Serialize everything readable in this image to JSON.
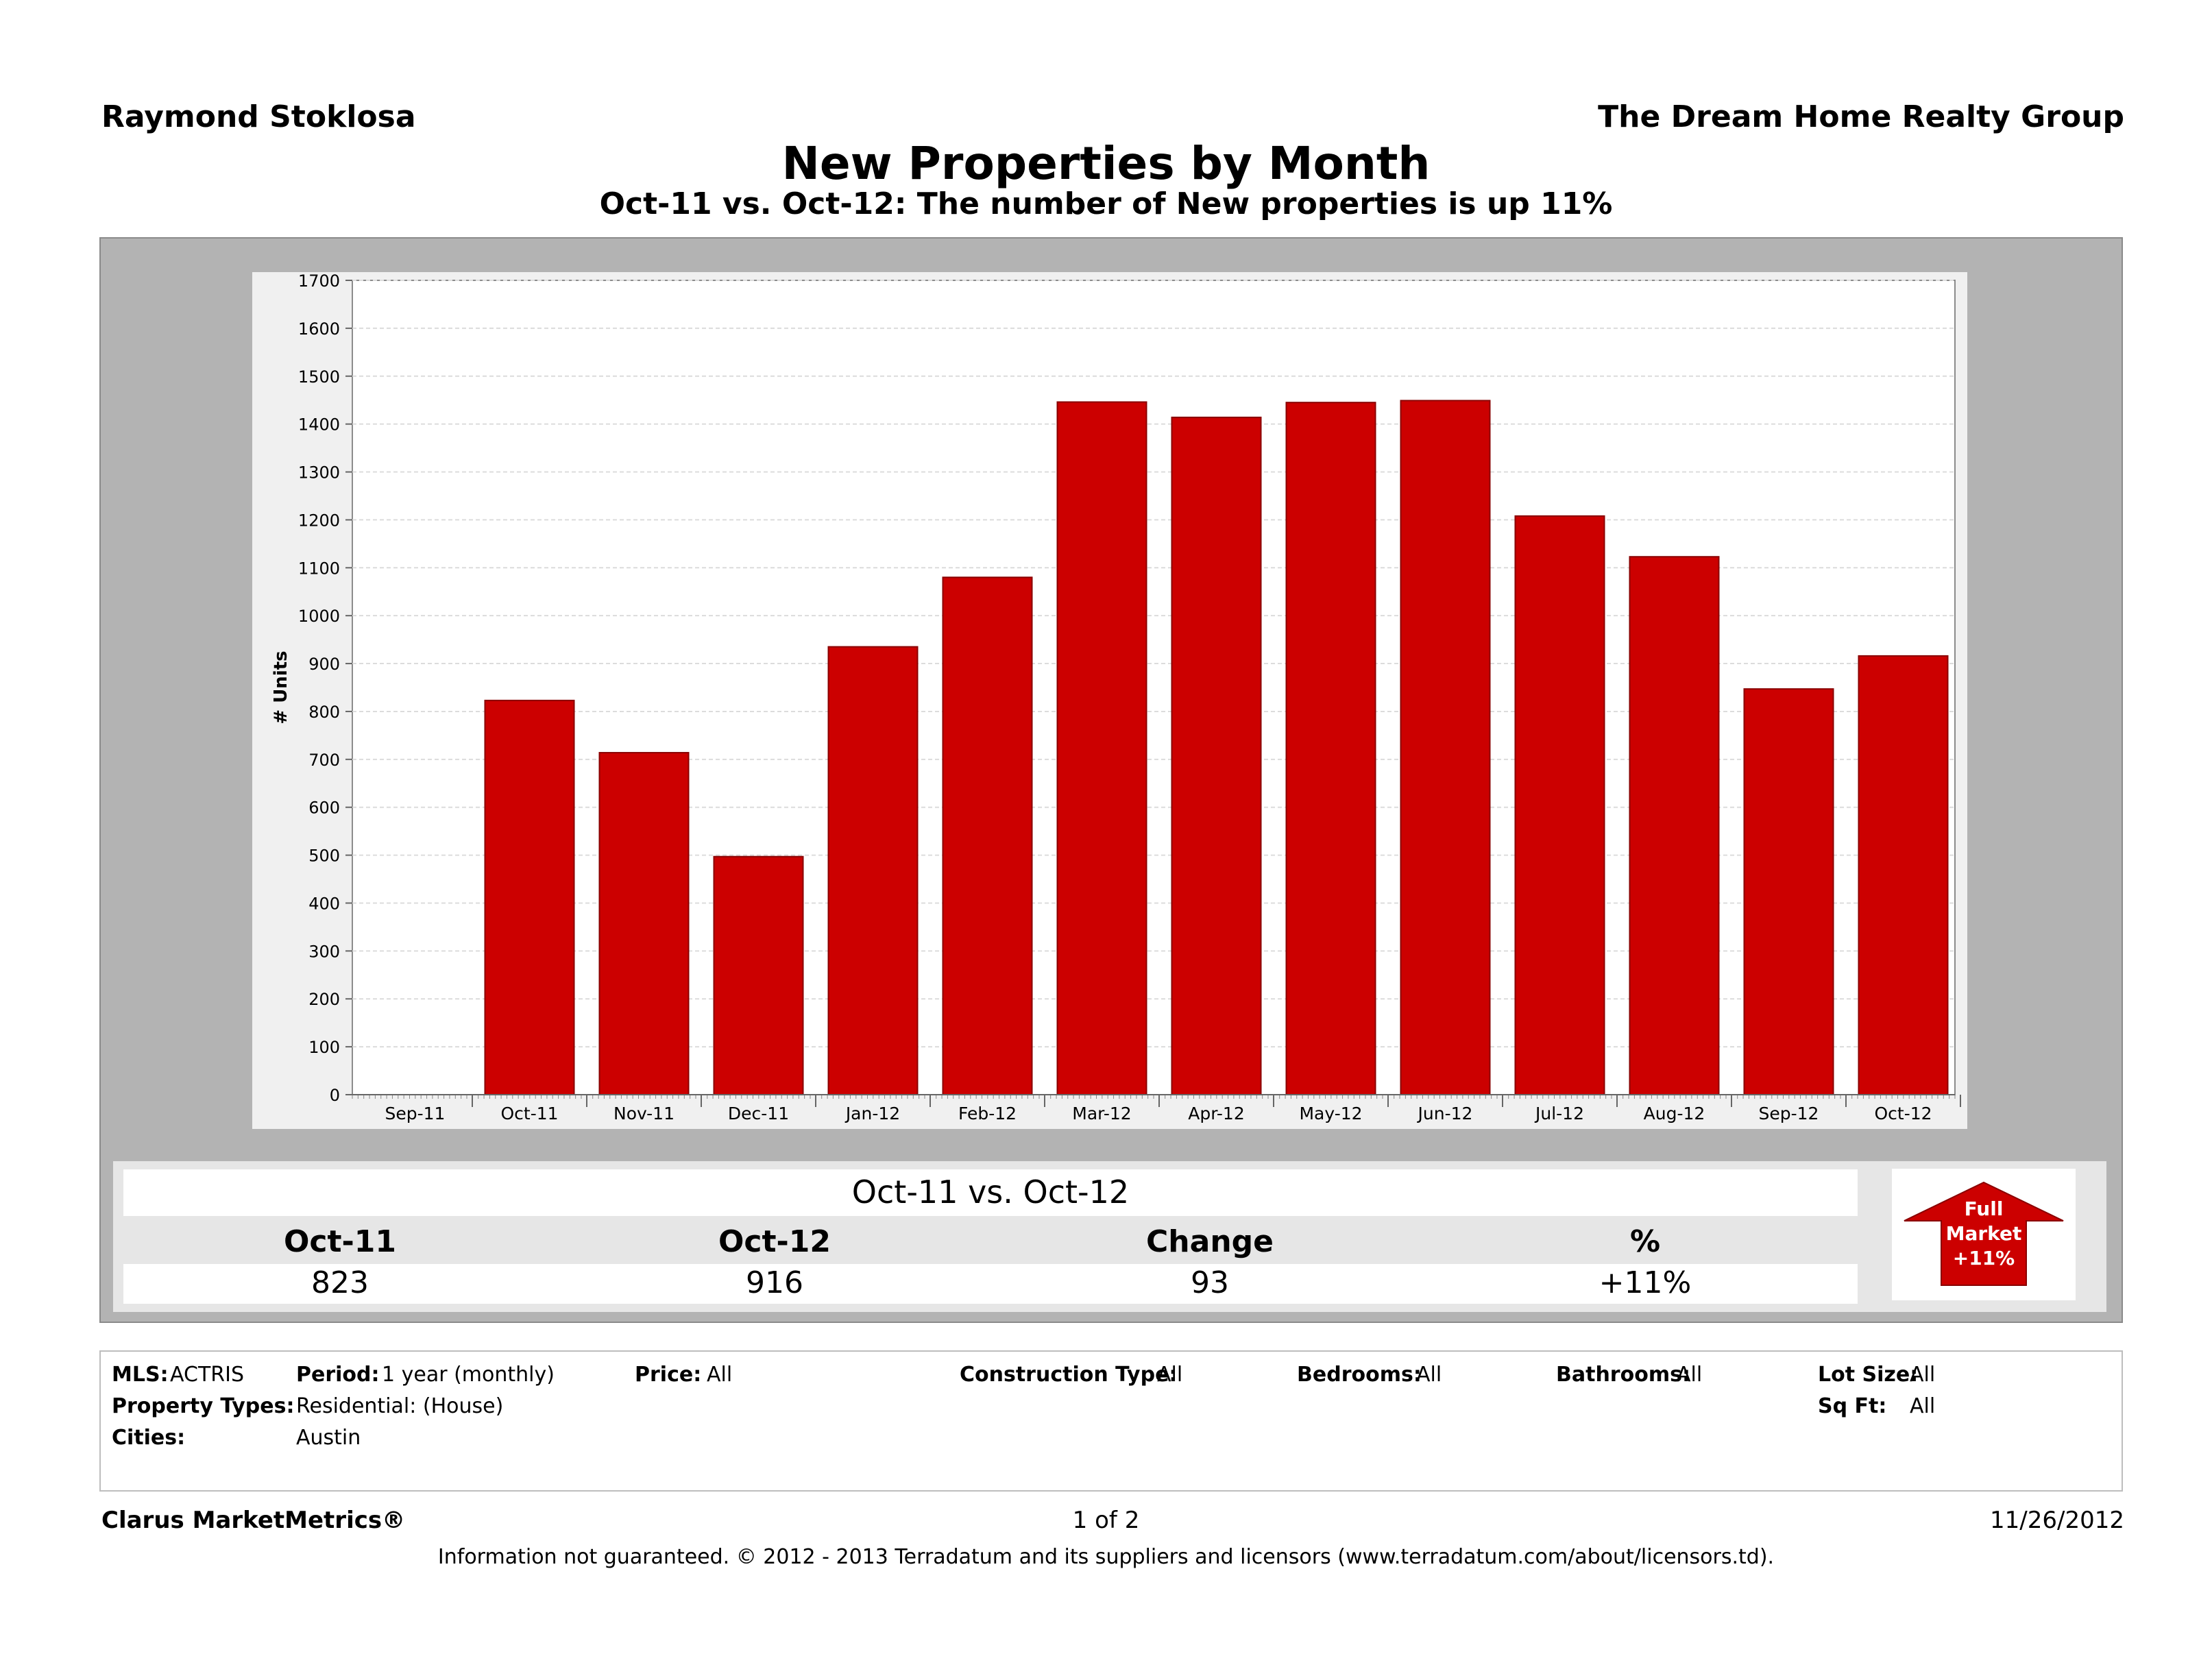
{
  "header": {
    "agent": "Raymond Stoklosa",
    "company": "The Dream Home Realty Group",
    "title": "New Properties by Month",
    "subtitle": "Oct-11 vs. Oct-12: The number of New properties is up 11%"
  },
  "chart_data": {
    "type": "bar",
    "ylabel": "# Units",
    "ylim": [
      0,
      1700
    ],
    "yticks": [
      0,
      100,
      200,
      300,
      400,
      500,
      600,
      700,
      800,
      900,
      1000,
      1100,
      1200,
      1300,
      1400,
      1500,
      1600,
      1700
    ],
    "grid": true,
    "categories": [
      "Sep-11",
      "Oct-11",
      "Nov-11",
      "Dec-11",
      "Jan-12",
      "Feb-12",
      "Mar-12",
      "Apr-12",
      "May-12",
      "Jun-12",
      "Jul-12",
      "Aug-12",
      "Sep-12",
      "Oct-12"
    ],
    "values": [
      null,
      823,
      714,
      497,
      935,
      1080,
      1446,
      1414,
      1445,
      1449,
      1208,
      1123,
      847,
      916
    ],
    "bar_color": "#cc0000"
  },
  "summary": {
    "title": "Oct-11 vs. Oct-12",
    "headers": [
      "Oct-11",
      "Oct-12",
      "Change",
      "%"
    ],
    "values": [
      "823",
      "916",
      "93",
      "+11%"
    ],
    "badge": {
      "line1": "Full",
      "line2": "Market",
      "line3": "+11%"
    }
  },
  "filters": {
    "mls_label": "MLS:",
    "mls": "ACTRIS",
    "period_label": "Period:",
    "period": "1 year (monthly)",
    "price_label": "Price:",
    "price": "All",
    "construction_label": "Construction Type:",
    "construction": "All",
    "bedrooms_label": "Bedrooms:",
    "bedrooms": "All",
    "bathrooms_label": "Bathrooms:",
    "bathrooms": "All",
    "lot_label": "Lot Size:",
    "lot": "All",
    "proptype_label": "Property Types:",
    "proptype": "Residential: (House)",
    "sqft_label": "Sq Ft:",
    "sqft": "All",
    "cities_label": "Cities:",
    "cities": "Austin"
  },
  "footer": {
    "brand": "Clarus MarketMetrics®",
    "page": "1 of 2",
    "date": "11/26/2012",
    "disclaimer": "Information not guaranteed.  © 2012 - 2013 Terradatum and its suppliers and licensors (www.terradatum.com/about/licensors.td)."
  }
}
